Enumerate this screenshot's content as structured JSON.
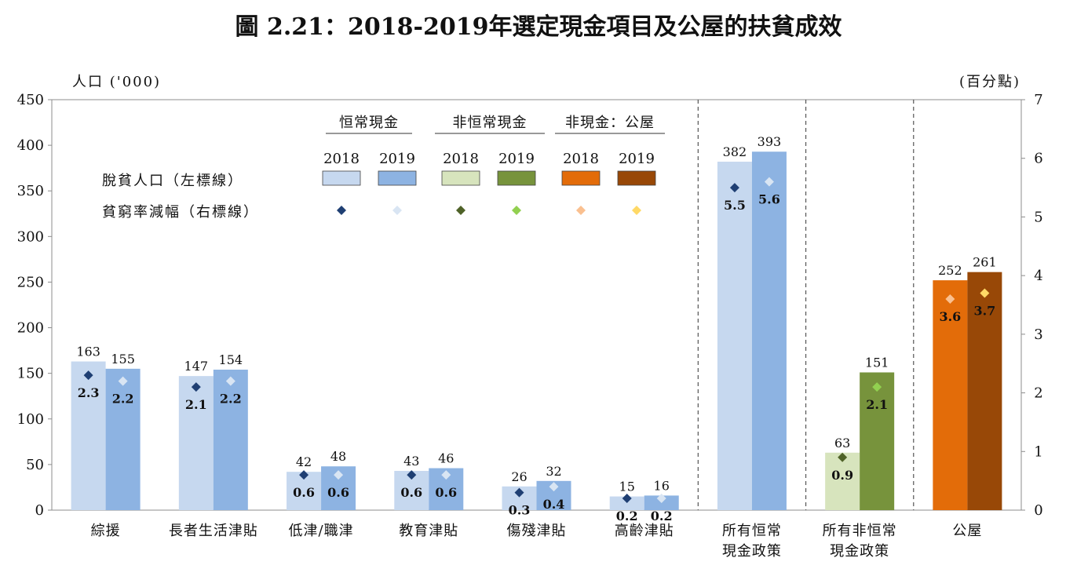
{
  "chart_data": {
    "type": "bar",
    "title": "圖 2.21：2018-2019年選定現金項目及公屋的扶貧成效",
    "left_axis": {
      "label": "人口 ('000)",
      "ylim": [
        0,
        450
      ],
      "ticks": [
        0,
        50,
        100,
        150,
        200,
        250,
        300,
        350,
        400,
        450
      ]
    },
    "right_axis": {
      "label": "(百分點)",
      "ylim": [
        0,
        7
      ],
      "ticks": [
        0,
        1,
        2,
        3,
        4,
        5,
        6,
        7
      ]
    },
    "categories": [
      {
        "label": [
          "綜援"
        ],
        "group": "recurrent"
      },
      {
        "label": [
          "長者生活津貼"
        ],
        "group": "recurrent"
      },
      {
        "label": [
          "低津/職津"
        ],
        "group": "recurrent"
      },
      {
        "label": [
          "教育津貼"
        ],
        "group": "recurrent"
      },
      {
        "label": [
          "傷殘津貼"
        ],
        "group": "recurrent"
      },
      {
        "label": [
          "高齡津貼"
        ],
        "group": "recurrent"
      },
      {
        "label": [
          "所有恒常",
          "現金政策"
        ],
        "group": "recurrent"
      },
      {
        "label": [
          "所有非恒常",
          "現金政策"
        ],
        "group": "nonrecurrent"
      },
      {
        "label": [
          "公屋"
        ],
        "group": "housing"
      }
    ],
    "series": [
      {
        "name": "2018",
        "population": [
          163,
          147,
          42,
          43,
          26,
          15,
          382,
          63,
          252
        ],
        "rate_reduction": [
          2.3,
          2.1,
          0.6,
          0.6,
          0.3,
          0.2,
          5.5,
          0.9,
          3.6
        ]
      },
      {
        "name": "2019",
        "population": [
          155,
          154,
          48,
          46,
          32,
          16,
          393,
          151,
          261
        ],
        "rate_reduction": [
          2.2,
          2.2,
          0.6,
          0.6,
          0.4,
          0.2,
          5.6,
          2.1,
          3.7
        ]
      }
    ],
    "legend": {
      "groups": [
        "恒常現金",
        "非恒常現金",
        "非現金：公屋"
      ],
      "years": [
        "2018",
        "2019",
        "2018",
        "2019",
        "2018",
        "2019"
      ],
      "rows": [
        "脫貧人口（左標線）",
        "貧窮率減幅（右標線）"
      ]
    },
    "colors": {
      "recurrent": {
        "bar2018": "#c6d8ef",
        "bar2019": "#8db3e2",
        "dia2018": "#1f3f73",
        "dia2019": "#d9e5f3"
      },
      "nonrecurrent": {
        "bar2018": "#d7e4bd",
        "bar2019": "#77933c",
        "dia2018": "#4f6228",
        "dia2019": "#92d050"
      },
      "housing": {
        "bar2018": "#e36c09",
        "bar2019": "#984807",
        "dia2018": "#fac090",
        "dia2019": "#ffd966"
      }
    }
  }
}
